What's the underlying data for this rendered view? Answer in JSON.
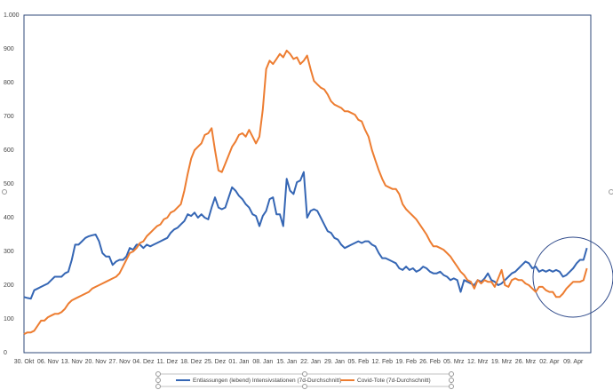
{
  "chart_data": {
    "type": "line",
    "categories": [
      "30. Okt",
      null,
      null,
      null,
      null,
      null,
      null,
      "06. Nov",
      null,
      null,
      null,
      null,
      null,
      null,
      "13. Nov",
      null,
      null,
      null,
      null,
      null,
      null,
      "20. Nov",
      null,
      null,
      null,
      null,
      null,
      null,
      "27. Nov",
      null,
      null,
      null,
      null,
      null,
      null,
      "04. Dez",
      null,
      null,
      null,
      null,
      null,
      null,
      "11. Dez",
      null,
      null,
      null,
      null,
      null,
      null,
      "18. Dez",
      null,
      null,
      null,
      null,
      null,
      null,
      "25. Dez",
      null,
      null,
      null,
      null,
      null,
      null,
      "01. Jan",
      null,
      null,
      null,
      null,
      null,
      null,
      "08. Jan",
      null,
      null,
      null,
      null,
      null,
      null,
      "15. Jan",
      null,
      null,
      null,
      null,
      null,
      null,
      "22. Jan",
      null,
      null,
      null,
      null,
      null,
      null,
      "29. Jan",
      null,
      null,
      null,
      null,
      null,
      null,
      "05. Feb",
      null,
      null,
      null,
      null,
      null,
      null,
      "12. Feb",
      null,
      null,
      null,
      null,
      null,
      null,
      "19. Feb",
      null,
      null,
      null,
      null,
      null,
      null,
      "26. Feb",
      null,
      null,
      null,
      null,
      null,
      null,
      "05. Mrz",
      null,
      null,
      null,
      null,
      null,
      null,
      "12. Mrz",
      null,
      null,
      null,
      null,
      null,
      null,
      "19. Mrz",
      null,
      null,
      null,
      null,
      null,
      null,
      "26. Mrz",
      null,
      null,
      null,
      null,
      null,
      null,
      "02. Apr",
      null,
      null,
      null,
      null,
      null,
      null,
      "09. Apr",
      null,
      null,
      null,
      null
    ],
    "series": [
      {
        "name": "Entlassungen (lebend) Intensivstationen  (7d-Durchschnitt)",
        "color": "#3566b4",
        "values": [
          165,
          162,
          160,
          185,
          190,
          195,
          200,
          205,
          215,
          225,
          225,
          225,
          235,
          240,
          275,
          320,
          320,
          330,
          340,
          345,
          348,
          350,
          330,
          295,
          285,
          285,
          260,
          270,
          275,
          275,
          285,
          310,
          305,
          320,
          320,
          310,
          320,
          315,
          320,
          325,
          330,
          335,
          340,
          355,
          365,
          370,
          380,
          390,
          410,
          405,
          415,
          400,
          410,
          400,
          395,
          430,
          460,
          430,
          425,
          430,
          460,
          490,
          480,
          465,
          455,
          440,
          430,
          410,
          405,
          375,
          405,
          420,
          455,
          460,
          410,
          410,
          375,
          515,
          480,
          470,
          505,
          510,
          535,
          400,
          420,
          425,
          420,
          400,
          380,
          360,
          355,
          340,
          335,
          320,
          310,
          315,
          320,
          325,
          330,
          325,
          330,
          330,
          320,
          315,
          295,
          280,
          280,
          275,
          270,
          265,
          250,
          245,
          255,
          245,
          250,
          240,
          245,
          255,
          250,
          240,
          235,
          235,
          240,
          230,
          225,
          215,
          220,
          215,
          180,
          215,
          210,
          205,
          200,
          215,
          210,
          220,
          235,
          215,
          210,
          200,
          205,
          215,
          225,
          235,
          240,
          250,
          260,
          270,
          265,
          250,
          255,
          240,
          245,
          240,
          245,
          240,
          245,
          240,
          225,
          230,
          240,
          250,
          265,
          275,
          275,
          310
        ]
      },
      {
        "name": "Covid-Tote (7d-Durchschnitt)",
        "color": "#ed7d31",
        "values": [
          55,
          60,
          60,
          65,
          80,
          95,
          95,
          105,
          110,
          115,
          115,
          120,
          130,
          145,
          155,
          160,
          165,
          170,
          175,
          180,
          190,
          195,
          200,
          205,
          210,
          215,
          220,
          225,
          235,
          255,
          275,
          295,
          300,
          310,
          325,
          330,
          345,
          355,
          365,
          375,
          380,
          395,
          400,
          415,
          420,
          430,
          440,
          480,
          530,
          575,
          600,
          610,
          620,
          645,
          650,
          665,
          600,
          540,
          535,
          560,
          585,
          610,
          625,
          645,
          650,
          640,
          660,
          640,
          620,
          640,
          720,
          840,
          865,
          855,
          870,
          885,
          875,
          895,
          885,
          870,
          875,
          855,
          865,
          880,
          840,
          805,
          795,
          785,
          780,
          765,
          745,
          735,
          730,
          725,
          715,
          715,
          710,
          705,
          690,
          685,
          660,
          640,
          600,
          570,
          540,
          515,
          495,
          490,
          485,
          485,
          470,
          440,
          425,
          415,
          405,
          395,
          380,
          365,
          350,
          330,
          315,
          315,
          310,
          305,
          295,
          285,
          270,
          255,
          240,
          230,
          215,
          210,
          190,
          215,
          205,
          215,
          210,
          210,
          195,
          220,
          245,
          200,
          195,
          215,
          220,
          215,
          215,
          205,
          200,
          190,
          180,
          195,
          195,
          185,
          180,
          180,
          165,
          165,
          175,
          190,
          200,
          210,
          210,
          210,
          215,
          250
        ]
      }
    ],
    "ylim": [
      0,
      1000
    ],
    "yticks": [
      0,
      100,
      200,
      300,
      400,
      500,
      600,
      700,
      800,
      900,
      {
        "value": 1000,
        "label": "1.000"
      }
    ]
  }
}
